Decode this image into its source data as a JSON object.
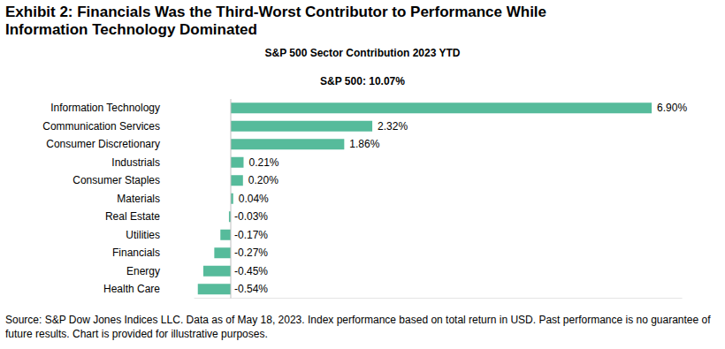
{
  "chart_data": {
    "type": "bar",
    "orientation": "horizontal",
    "title": "Exhibit 2: Financials Was the Third-Worst Contributor to Performance While Information Technology Dominated",
    "subtitle": "S&P 500 Sector Contribution 2023 YTD",
    "annotations": [
      "S&P 500: 10.07%",
      "Source: S&P Dow Jones Indices LLC. Data as of May 18, 2023. Index performance based on total return in USD. Past performance is no guarantee of future results. Chart is provided for illustrative purposes."
    ],
    "categories": [
      "Information Technology",
      "Communication Services",
      "Consumer Discretionary",
      "Industrials",
      "Consumer Staples",
      "Materials",
      "Real Estate",
      "Utilities",
      "Financials",
      "Energy",
      "Health Care"
    ],
    "values": [
      6.9,
      2.32,
      1.86,
      0.21,
      0.2,
      0.04,
      -0.03,
      -0.17,
      -0.27,
      -0.45,
      -0.54
    ],
    "value_labels": [
      "6.90%",
      "2.32%",
      "1.86%",
      "0.21%",
      "0.20%",
      "0.04%",
      "-0.03%",
      "-0.17%",
      "-0.27%",
      "-0.45%",
      "-0.54%"
    ],
    "color": "#56bb9b",
    "xlim": [
      -0.6,
      7.4
    ],
    "xticks": [
      0
    ],
    "tick_labels": "y",
    "data_labels": true,
    "grid": false
  }
}
